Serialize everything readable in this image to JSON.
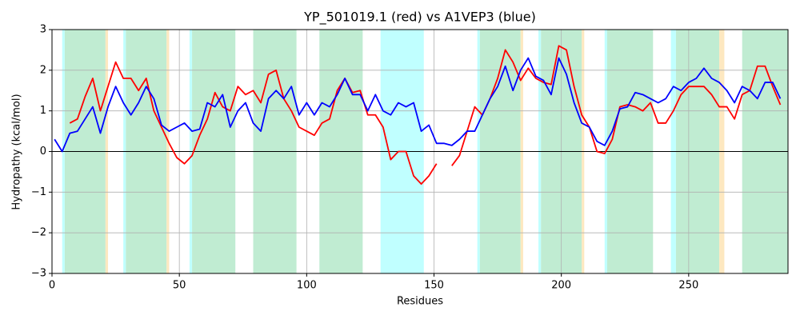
{
  "chart_data": {
    "type": "line",
    "title": "YP_501019.1 (red) vs A1VEP3 (blue)",
    "xlabel": "Residues",
    "ylabel": "Hydropathy (kcal/mol)",
    "xlim": [
      0,
      289
    ],
    "ylim": [
      -3,
      3
    ],
    "xticks": [
      0,
      50,
      100,
      150,
      200,
      250
    ],
    "yticks": [
      {
        "value": -3,
        "label": "−3"
      },
      {
        "value": -2,
        "label": "−2"
      },
      {
        "value": -1,
        "label": "−1"
      },
      0,
      1,
      2,
      3
    ],
    "grid": true,
    "hline": 0,
    "spans": [
      {
        "start": 4,
        "end": 5,
        "color": "#c0ffff"
      },
      {
        "start": 5,
        "end": 21,
        "color": "#c0ecd2"
      },
      {
        "start": 21,
        "end": 22,
        "color": "#fde8c0"
      },
      {
        "start": 28,
        "end": 29,
        "color": "#c0ffff"
      },
      {
        "start": 29,
        "end": 45,
        "color": "#c0ecd2"
      },
      {
        "start": 45,
        "end": 46,
        "color": "#fde8c0"
      },
      {
        "start": 54,
        "end": 55,
        "color": "#c0ffff"
      },
      {
        "start": 55,
        "end": 72,
        "color": "#c0ecd2"
      },
      {
        "start": 79,
        "end": 96,
        "color": "#c0ecd2"
      },
      {
        "start": 105,
        "end": 122,
        "color": "#c0ecd2"
      },
      {
        "start": 129,
        "end": 146,
        "color": "#c0ffff"
      },
      {
        "start": 167,
        "end": 168,
        "color": "#c0ffff"
      },
      {
        "start": 168,
        "end": 184,
        "color": "#c0ecd2"
      },
      {
        "start": 184,
        "end": 185,
        "color": "#fde8c0"
      },
      {
        "start": 191,
        "end": 192,
        "color": "#c0ffff"
      },
      {
        "start": 192,
        "end": 208,
        "color": "#c0ecd2"
      },
      {
        "start": 208,
        "end": 209,
        "color": "#fde8c0"
      },
      {
        "start": 217,
        "end": 218,
        "color": "#c0ffff"
      },
      {
        "start": 218,
        "end": 236,
        "color": "#c0ecd2"
      },
      {
        "start": 243,
        "end": 245,
        "color": "#c0ffff"
      },
      {
        "start": 245,
        "end": 262,
        "color": "#c0ecd2"
      },
      {
        "start": 262,
        "end": 264,
        "color": "#fde8c0"
      },
      {
        "start": 271,
        "end": 289,
        "color": "#c0ecd2"
      }
    ],
    "x": [
      1,
      4,
      7,
      10,
      13,
      16,
      19,
      22,
      25,
      28,
      31,
      34,
      37,
      40,
      43,
      46,
      49,
      52,
      55,
      58,
      61,
      64,
      67,
      70,
      73,
      76,
      79,
      82,
      85,
      88,
      91,
      94,
      97,
      100,
      103,
      106,
      109,
      112,
      115,
      118,
      121,
      124,
      127,
      130,
      133,
      136,
      139,
      142,
      145,
      148,
      151,
      154,
      157,
      160,
      163,
      166,
      169,
      172,
      175,
      178,
      181,
      184,
      187,
      190,
      193,
      196,
      199,
      202,
      205,
      208,
      211,
      214,
      217,
      220,
      223,
      226,
      229,
      232,
      235,
      238,
      241,
      244,
      247,
      250,
      253,
      256,
      259,
      262,
      265,
      268,
      271,
      274,
      277,
      280,
      283,
      286
    ],
    "series": [
      {
        "color": "#ff0000",
        "values": [
          null,
          null,
          0.7,
          0.8,
          1.35,
          1.8,
          1.0,
          1.6,
          2.2,
          1.8,
          1.8,
          1.5,
          1.8,
          1.0,
          0.6,
          0.2,
          -0.15,
          -0.3,
          -0.1,
          0.4,
          0.8,
          1.45,
          1.1,
          1.0,
          1.6,
          1.4,
          1.5,
          1.2,
          1.9,
          2.0,
          1.3,
          1.0,
          0.6,
          0.5,
          0.4,
          0.7,
          0.8,
          1.5,
          1.8,
          1.45,
          1.5,
          0.9,
          0.9,
          0.6,
          -0.2,
          0.0,
          0.0,
          -0.6,
          -0.8,
          -0.6,
          -0.3,
          null,
          -0.35,
          -0.1,
          0.5,
          1.1,
          0.9,
          1.3,
          1.8,
          2.5,
          2.2,
          1.75,
          2.05,
          1.8,
          1.7,
          1.65,
          2.6,
          2.5,
          1.6,
          0.9,
          0.6,
          0.0,
          -0.05,
          0.3,
          1.1,
          1.15,
          1.1,
          1.0,
          1.2,
          0.7,
          0.7,
          1.0,
          1.4,
          1.6,
          1.6,
          1.6,
          1.4,
          1.1,
          1.1,
          0.8,
          1.4,
          1.5,
          2.1,
          2.1,
          1.6,
          1.15
        ]
      },
      {
        "color": "#0000ff",
        "values": [
          0.3,
          0.0,
          0.45,
          0.5,
          0.8,
          1.1,
          0.45,
          1.1,
          1.6,
          1.2,
          0.9,
          1.2,
          1.6,
          1.3,
          0.65,
          0.5,
          0.6,
          0.7,
          0.5,
          0.55,
          1.2,
          1.1,
          1.4,
          0.6,
          1.0,
          1.2,
          0.7,
          0.5,
          1.3,
          1.5,
          1.3,
          1.6,
          0.9,
          1.2,
          0.9,
          1.2,
          1.1,
          1.4,
          1.8,
          1.4,
          1.4,
          1.0,
          1.4,
          1.0,
          0.9,
          1.2,
          1.1,
          1.2,
          0.5,
          0.65,
          0.2,
          0.2,
          0.15,
          0.3,
          0.5,
          0.5,
          0.9,
          1.3,
          1.6,
          2.1,
          1.5,
          2.0,
          2.3,
          1.85,
          1.75,
          1.4,
          2.3,
          1.9,
          1.2,
          0.7,
          0.6,
          0.25,
          0.15,
          0.5,
          1.05,
          1.1,
          1.45,
          1.4,
          1.3,
          1.2,
          1.3,
          1.6,
          1.5,
          1.7,
          1.8,
          2.05,
          1.8,
          1.7,
          1.5,
          1.2,
          1.6,
          1.5,
          1.3,
          1.7,
          1.7,
          1.3
        ]
      }
    ]
  }
}
